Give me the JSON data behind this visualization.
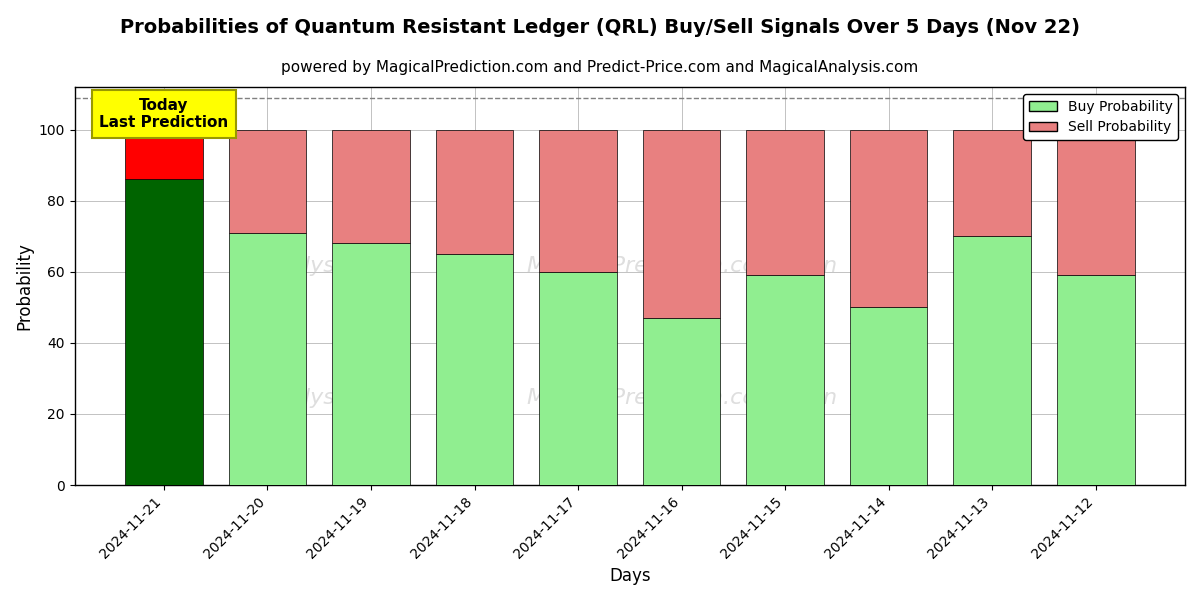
{
  "title": "Probabilities of Quantum Resistant Ledger (QRL) Buy/Sell Signals Over 5 Days (Nov 22)",
  "subtitle": "powered by MagicalPrediction.com and Predict-Price.com and MagicalAnalysis.com",
  "xlabel": "Days",
  "ylabel": "Probability",
  "dates": [
    "2024-11-21",
    "2024-11-20",
    "2024-11-19",
    "2024-11-18",
    "2024-11-17",
    "2024-11-16",
    "2024-11-15",
    "2024-11-14",
    "2024-11-13",
    "2024-11-12"
  ],
  "buy_values": [
    86,
    71,
    68,
    65,
    60,
    47,
    59,
    50,
    70,
    59
  ],
  "sell_values": [
    14,
    29,
    32,
    35,
    40,
    53,
    41,
    50,
    30,
    41
  ],
  "today_buy_color": "#006400",
  "today_sell_color": "#ff0000",
  "buy_color": "#90ee90",
  "sell_color": "#e88080",
  "today_label_bg": "#ffff00",
  "today_label_text": "Today\nLast Prediction",
  "legend_buy": "Buy Probability",
  "legend_sell": "Sell Probability",
  "ylim": [
    0,
    112
  ],
  "dashed_line_y": 109,
  "bg_color": "#ffffff",
  "grid_color": "#aaaaaa",
  "title_fontsize": 14,
  "subtitle_fontsize": 11,
  "axis_label_fontsize": 12,
  "tick_fontsize": 10
}
